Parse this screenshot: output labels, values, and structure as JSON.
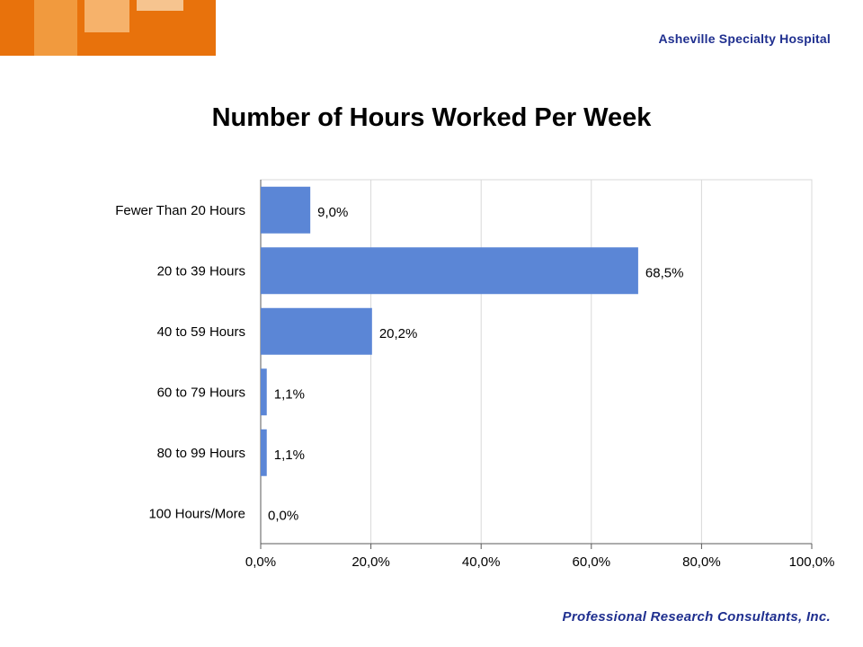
{
  "header": {
    "hospital_name": "Asheville Specialty Hospital"
  },
  "footer": {
    "company": "Professional Research Consultants, Inc."
  },
  "colors": {
    "bar": "#5b86d6",
    "logo_dark": "#e8720c",
    "logo_mid": "#f19a3e",
    "logo_light": "#f6b26b",
    "brand_text": "#1f2f8f"
  },
  "chart_data": {
    "type": "bar",
    "orientation": "horizontal",
    "title": "Number of Hours Worked Per Week",
    "categories": [
      "Fewer Than 20 Hours",
      "20 to 39 Hours",
      "40 to 59 Hours",
      "60 to 79 Hours",
      "80 to 99 Hours",
      "100 Hours/More"
    ],
    "values": [
      9.0,
      68.5,
      20.2,
      1.1,
      1.1,
      0.0
    ],
    "data_labels": [
      "9,0%",
      "68,5%",
      "20,2%",
      "1,1%",
      "1,1%",
      "0,0%"
    ],
    "xlim": [
      0,
      100
    ],
    "x_ticks": [
      0,
      20,
      40,
      60,
      80,
      100
    ],
    "x_tick_labels": [
      "0,0%",
      "20,0%",
      "40,0%",
      "60,0%",
      "80,0%",
      "100,0%"
    ],
    "grid": true,
    "legend": "none"
  }
}
